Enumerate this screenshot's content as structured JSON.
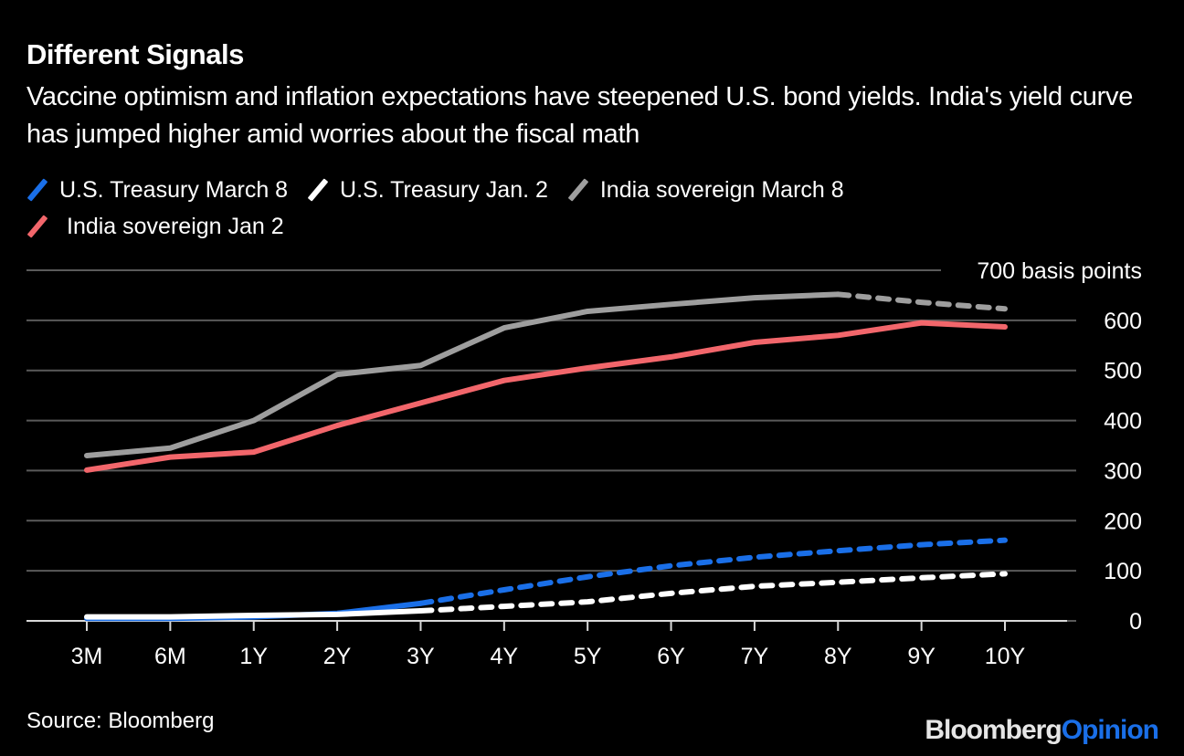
{
  "header": {
    "title": "Different Signals",
    "subtitle": "Vaccine optimism and inflation expectations have steepened U.S. bond yields. India's yield curve has jumped higher amid worries about the fiscal math"
  },
  "footer": {
    "source": "Source: Bloomberg",
    "brand_part1": "Bloomberg",
    "brand_part2": "Opinion"
  },
  "colors": {
    "background": "#000000",
    "us_march8": "#1a6fe8",
    "us_jan2": "#ffffff",
    "india_march8": "#9e9e9e",
    "india_jan2": "#f2666b",
    "grid": "#5a5a5a",
    "baseline": "#d9d9d9"
  },
  "chart_data": {
    "type": "line",
    "title": "Different Signals",
    "subtitle": "Vaccine optimism and inflation expectations have steepened U.S. bond yields. India's yield curve has jumped higher amid worries about the fiscal math",
    "xlabel": "",
    "ylabel": "basis points",
    "y_top_label": "700 basis points",
    "categories": [
      "3M",
      "6M",
      "1Y",
      "2Y",
      "3Y",
      "4Y",
      "5Y",
      "6Y",
      "7Y",
      "8Y",
      "9Y",
      "10Y"
    ],
    "yticks": [
      0,
      100,
      200,
      300,
      400,
      500,
      600,
      700
    ],
    "ytick_labels": [
      "0",
      "100",
      "200",
      "300",
      "400",
      "500",
      "600",
      "700 basis points"
    ],
    "ylim": [
      0,
      700
    ],
    "grid": true,
    "y_axis_side": "right",
    "legend_position": "top-left",
    "series": [
      {
        "name": "U.S. Treasury March 8",
        "color": "#1a6fe8",
        "values": [
          5,
          5,
          8,
          15,
          35,
          62,
          88,
          110,
          127,
          140,
          152,
          161
        ],
        "dashed_after": "3Y"
      },
      {
        "name": "U.S. Treasury Jan. 2",
        "color": "#ffffff",
        "values": [
          8,
          8,
          11,
          13,
          20,
          29,
          38,
          55,
          69,
          77,
          86,
          94
        ],
        "dashed_after": "3Y"
      },
      {
        "name": "India sovereign March 8",
        "color": "#9e9e9e",
        "values": [
          330,
          345,
          400,
          492,
          510,
          585,
          618,
          632,
          645,
          652,
          636,
          623
        ],
        "dashed_after": "8Y"
      },
      {
        "name": "India sovereign Jan 2",
        "color": "#f2666b",
        "values": [
          301,
          327,
          337,
          390,
          435,
          480,
          505,
          527,
          556,
          570,
          595,
          587
        ],
        "dashed_after": null
      }
    ]
  }
}
